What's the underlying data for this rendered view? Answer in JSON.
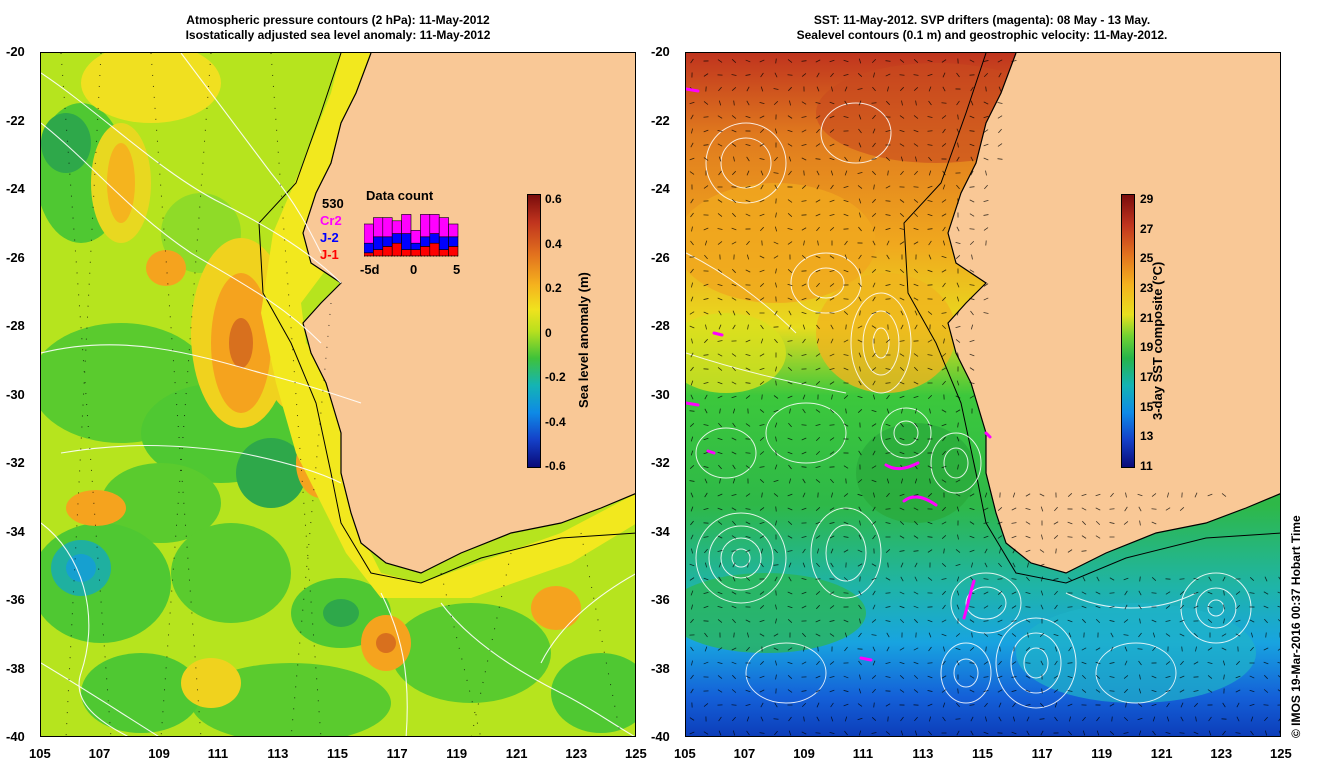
{
  "left_panel": {
    "title_line1": "Atmospheric pressure contours (2 hPa): 11-May-2012",
    "title_line2": "Isostatically adjusted sea level anomaly: 11-May-2012",
    "colorbar": {
      "label": "Sea level anomaly (m)",
      "ticks": [
        "0.6",
        "0.4",
        "0.2",
        "0",
        "-0.2",
        "-0.4",
        "-0.6"
      ],
      "min": -0.6,
      "max": 0.6
    },
    "data_count": {
      "title": "Data count",
      "total": "530",
      "series": [
        {
          "name": "Cr2",
          "color": "#ff00ff"
        },
        {
          "name": "J-2",
          "color": "#0000ff"
        },
        {
          "name": "J-1",
          "color": "#ff0000"
        }
      ],
      "axis_labels": [
        "-5d",
        "0",
        "5"
      ],
      "bars": [
        {
          "j1": 1,
          "j2": 3,
          "cr2": 6
        },
        {
          "j1": 2,
          "j2": 4,
          "cr2": 6
        },
        {
          "j1": 3,
          "j2": 3,
          "cr2": 6
        },
        {
          "j1": 4,
          "j2": 3,
          "cr2": 4
        },
        {
          "j1": 2,
          "j2": 5,
          "cr2": 6
        },
        {
          "j1": 2,
          "j2": 2,
          "cr2": 4
        },
        {
          "j1": 3,
          "j2": 3,
          "cr2": 7
        },
        {
          "j1": 4,
          "j2": 3,
          "cr2": 6
        },
        {
          "j1": 2,
          "j2": 4,
          "cr2": 6
        },
        {
          "j1": 3,
          "j2": 3,
          "cr2": 4
        }
      ]
    }
  },
  "right_panel": {
    "title_line1": "SST: 11-May-2012. SVP drifters (magenta): 08 May - 13 May.",
    "title_line2": "Sealevel contours (0.1 m) and geostrophic velocity: 11-May-2012.",
    "colorbar": {
      "label": "3-day SST composite (°C)",
      "ticks": [
        "29",
        "27",
        "25",
        "23",
        "21",
        "19",
        "17",
        "15",
        "13",
        "11"
      ],
      "min": 11,
      "max": 29
    }
  },
  "axes": {
    "x_ticks": [
      "105",
      "107",
      "109",
      "111",
      "113",
      "115",
      "117",
      "119",
      "121",
      "123",
      "125"
    ],
    "y_ticks": [
      "-20",
      "-22",
      "-24",
      "-26",
      "-28",
      "-30",
      "-32",
      "-34",
      "-36",
      "-38",
      "-40"
    ],
    "lon_range": [
      105,
      125
    ],
    "lat_range": [
      -40,
      -20
    ]
  },
  "credit": "© IMOS 19-Mar-2016 00:37 Hobart Time",
  "colors": {
    "land": "#f9c896",
    "coast": "#000000",
    "contour": "#ffffff",
    "drifter": "#ff00ff"
  }
}
